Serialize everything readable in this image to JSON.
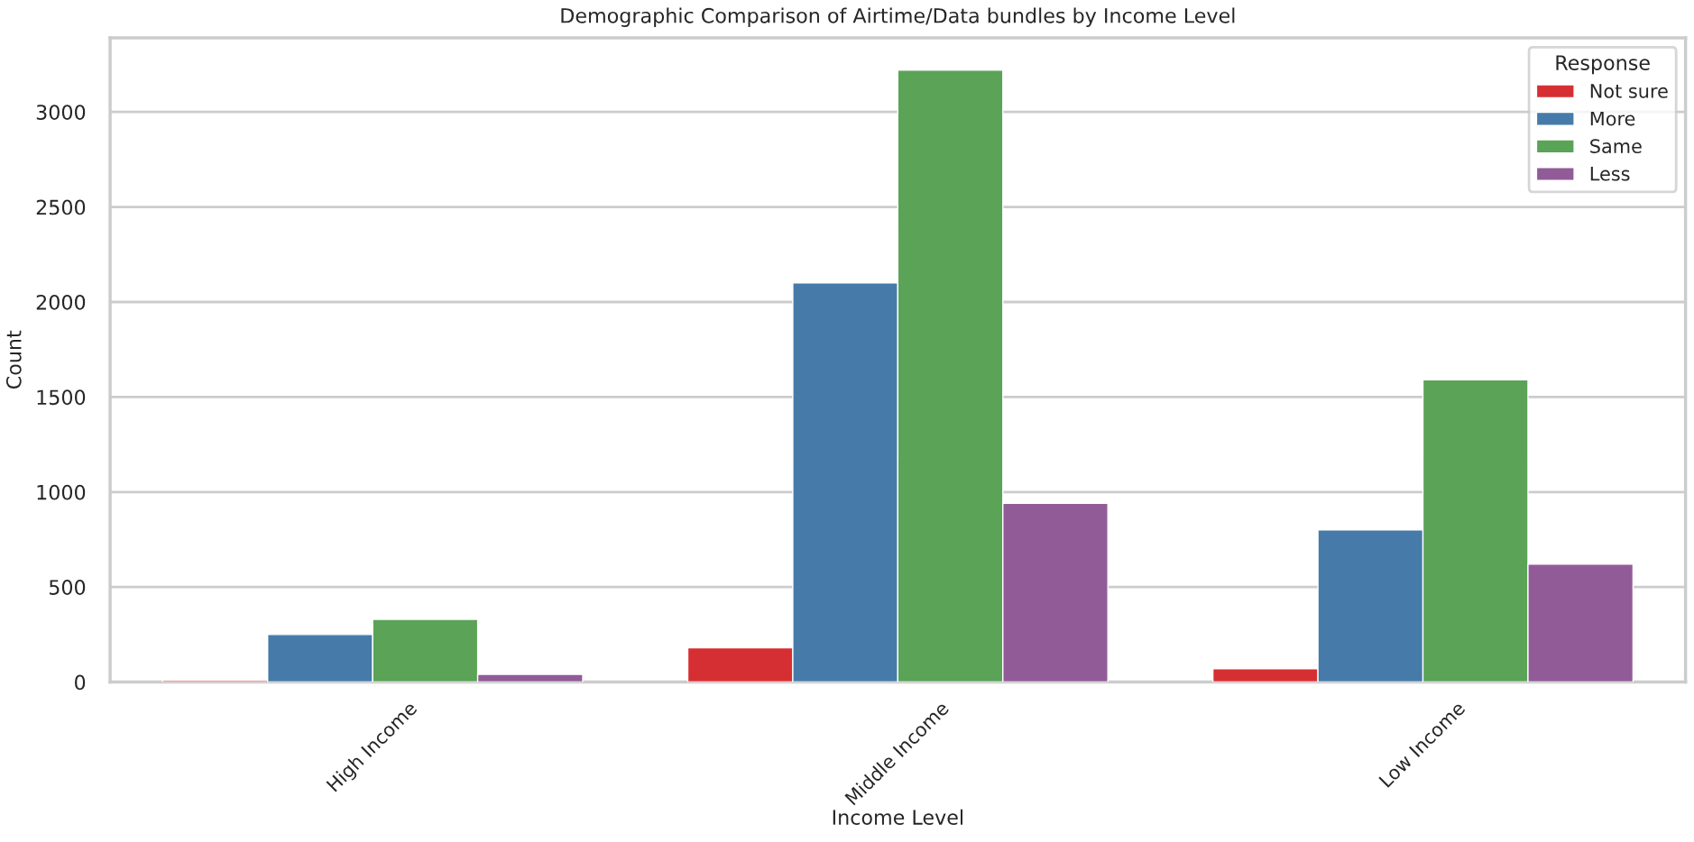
{
  "chart_data": {
    "type": "bar",
    "title": "Demographic Comparison of Airtime/Data bundles by Income Level",
    "xlabel": "Income Level",
    "ylabel": "Count",
    "legend_title": "Response",
    "categories": [
      "High Income",
      "Middle Income",
      "Low Income"
    ],
    "series": [
      {
        "name": "Not sure",
        "color": "#d62f33",
        "values": [
          10,
          180,
          70
        ]
      },
      {
        "name": "More",
        "color": "#467ba9",
        "values": [
          250,
          2100,
          800
        ]
      },
      {
        "name": "Same",
        "color": "#5aa357",
        "values": [
          330,
          3220,
          1590
        ]
      },
      {
        "name": "Less",
        "color": "#915b98",
        "values": [
          40,
          940,
          620
        ]
      }
    ],
    "ylim": [
      0,
      3390
    ],
    "yticks": [
      0,
      500,
      1000,
      1500,
      2000,
      2500,
      3000
    ],
    "grid": "y",
    "legend": "top right"
  }
}
